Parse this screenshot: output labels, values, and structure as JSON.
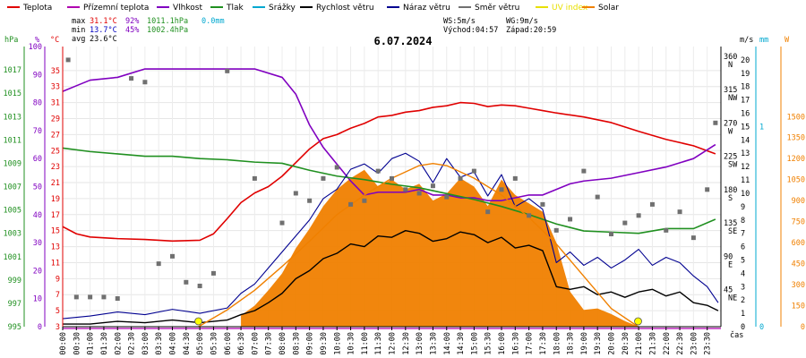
{
  "legend": [
    {
      "label": "Teplota",
      "color": "#e00000"
    },
    {
      "label": "Přízemní teplota",
      "color": "#b000b0"
    },
    {
      "label": "Vlhkost",
      "color": "#8000c0"
    },
    {
      "label": "Tlak",
      "color": "#209020"
    },
    {
      "label": "Srážky",
      "color": "#00a8d0"
    },
    {
      "label": "Rychlost větru",
      "color": "#000000"
    },
    {
      "label": "Náraz větru",
      "color": "#000090"
    },
    {
      "label": "Směr větru",
      "color": "#707070"
    },
    {
      "label": "UV index",
      "color": "#e8e000"
    },
    {
      "label": "Solar",
      "color": "#f08000"
    }
  ],
  "stats": {
    "max_label": "max",
    "max_temp": "31.1°C",
    "max_hum": "92%",
    "max_press": "1011.1hPa",
    "max_rain": "0.0mm",
    "min_label": "min",
    "min_temp": "13.7°C",
    "min_hum": "45%",
    "min_press": "1002.4hPa",
    "avg_label": "avg",
    "avg_temp": "23.6°C",
    "ws": "WS:5m/s",
    "wg": "WG:9m/s",
    "sunrise": "Východ:04:57",
    "sunset": "Západ:20:59"
  },
  "axes_titles": {
    "hpa": "hPa",
    "pct": "%",
    "degc": "°C",
    "ms": "m/s",
    "mm": "mm",
    "w": "W",
    "cas": "čas"
  },
  "chart_data": {
    "type": "line",
    "title": "6.07.2024",
    "x_ticks": [
      "00:00",
      "00:30",
      "01:00",
      "01:30",
      "02:00",
      "02:30",
      "03:00",
      "03:30",
      "04:00",
      "04:30",
      "05:00",
      "05:30",
      "06:00",
      "06:30",
      "07:00",
      "07:30",
      "08:00",
      "08:30",
      "09:00",
      "09:30",
      "10:00",
      "10:30",
      "11:00",
      "11:30",
      "12:00",
      "12:30",
      "13:00",
      "13:30",
      "14:00",
      "14:30",
      "15:00",
      "15:30",
      "16:00",
      "16:30",
      "17:00",
      "17:30",
      "18:00",
      "18:30",
      "19:00",
      "19:30",
      "20:00",
      "20:30",
      "21:00",
      "21:30",
      "22:00",
      "22:30",
      "23:00",
      "23:30"
    ],
    "axis_hpa": {
      "ticks": [
        "995",
        "997",
        "999",
        "1001",
        "1003",
        "1005",
        "1007",
        "1009",
        "1011",
        "1013",
        "1015",
        "1017"
      ],
      "range": [
        995,
        1019
      ],
      "color": "#209020"
    },
    "axis_pct": {
      "ticks": [
        "0",
        "10",
        "20",
        "30",
        "40",
        "50",
        "60",
        "70",
        "80",
        "90",
        "100"
      ],
      "range": [
        0,
        100
      ],
      "color": "#8000c0"
    },
    "axis_degc": {
      "ticks": [
        "3",
        "5",
        "7",
        "9",
        "11",
        "13",
        "15",
        "17",
        "19",
        "21",
        "23",
        "25",
        "27",
        "29",
        "31",
        "33",
        "35"
      ],
      "range": [
        3,
        38
      ],
      "color": "#e00000"
    },
    "axis_ms": {
      "ticks": [
        "0",
        "1",
        "2",
        "3",
        "4",
        "5",
        "6",
        "7",
        "8",
        "9",
        "10",
        "11",
        "12",
        "13",
        "14",
        "15",
        "16",
        "17",
        "18",
        "19",
        "20"
      ],
      "range": [
        0,
        21
      ],
      "color": "#000000"
    },
    "axis_dir": {
      "labels": [
        {
          "v": 45,
          "t": "45",
          "s": "NE"
        },
        {
          "v": 90,
          "t": "90",
          "s": "E"
        },
        {
          "v": 135,
          "t": "135",
          "s": "SE"
        },
        {
          "v": 180,
          "t": "180",
          "s": "S"
        },
        {
          "v": 225,
          "t": "225",
          "s": "SW"
        },
        {
          "v": 270,
          "t": "270",
          "s": "W"
        },
        {
          "v": 315,
          "t": "315",
          "s": "NW"
        },
        {
          "v": 360,
          "t": "360",
          "s": "N"
        }
      ],
      "range": [
        0,
        378
      ]
    },
    "axis_mm": {
      "ticks": [
        "0",
        "1"
      ],
      "range": [
        0,
        1.4
      ],
      "color": "#00a8d0"
    },
    "axis_w": {
      "ticks": [
        "0",
        "150",
        "300",
        "450",
        "600",
        "750",
        "900",
        "1050",
        "1200",
        "1350",
        "1500"
      ],
      "range": [
        0,
        2000
      ],
      "color": "#f08000"
    },
    "series": [
      {
        "name": "Teplota",
        "axis": "degc",
        "hours": [
          0,
          0.5,
          1,
          2,
          3,
          4,
          5,
          5.5,
          6,
          6.5,
          7,
          7.5,
          8,
          8.5,
          9,
          9.5,
          10,
          10.5,
          11,
          11.5,
          12,
          12.5,
          13,
          13.5,
          14,
          14.5,
          15,
          15.5,
          16,
          16.5,
          17,
          17.5,
          18,
          19,
          20,
          21,
          22,
          23,
          23.8
        ],
        "values": [
          15.5,
          14.6,
          14.2,
          14.0,
          13.9,
          13.7,
          13.8,
          14.6,
          16.5,
          18.5,
          19.7,
          20.5,
          21.8,
          23.5,
          25.2,
          26.5,
          27.0,
          27.8,
          28.4,
          29.2,
          29.4,
          29.8,
          30.0,
          30.4,
          30.6,
          31.0,
          30.9,
          30.5,
          30.7,
          30.6,
          30.3,
          30.0,
          29.7,
          29.2,
          28.5,
          27.4,
          26.4,
          25.6,
          24.6
        ]
      },
      {
        "name": "Vlhkost",
        "axis": "pct",
        "hours": [
          0,
          0.5,
          1,
          2,
          3,
          4,
          5,
          6,
          7,
          8,
          8.5,
          9,
          9.5,
          10,
          10.5,
          11,
          11.5,
          12,
          12.5,
          13,
          13.5,
          14,
          14.5,
          15,
          15.5,
          16,
          16.5,
          17,
          17.5,
          18,
          18.5,
          19,
          20,
          21,
          22,
          23,
          23.8
        ],
        "values": [
          84,
          86,
          88,
          89,
          92,
          92,
          92,
          92,
          92,
          89,
          83,
          72,
          64,
          58,
          52,
          47,
          48,
          48,
          48,
          49,
          47,
          47,
          46,
          46,
          45,
          45,
          46,
          47,
          47,
          49,
          51,
          52,
          53,
          55,
          57,
          60,
          65
        ]
      },
      {
        "name": "Tlak",
        "axis": "hpa",
        "hours": [
          0,
          1,
          2,
          3,
          4,
          5,
          6,
          7,
          8,
          9,
          10,
          11,
          12,
          13,
          14,
          15,
          16,
          17,
          18,
          19,
          20,
          21,
          22,
          23,
          23.8
        ],
        "values": [
          1010.3,
          1010.0,
          1009.8,
          1009.6,
          1009.6,
          1009.4,
          1009.3,
          1009.1,
          1009.0,
          1008.4,
          1007.9,
          1007.6,
          1007.2,
          1006.9,
          1006.4,
          1005.9,
          1005.3,
          1004.6,
          1003.8,
          1003.2,
          1003.1,
          1003.0,
          1003.4,
          1003.4,
          1004.2
        ]
      },
      {
        "name": "Rychlost větru",
        "axis": "ms",
        "hours": [
          0,
          1,
          2,
          3,
          4,
          5,
          6,
          6.5,
          7,
          7.5,
          8,
          8.5,
          9,
          9.5,
          10,
          10.5,
          11,
          11.5,
          12,
          12.5,
          13,
          13.5,
          14,
          14.5,
          15,
          15.5,
          16,
          16.5,
          17,
          17.5,
          18,
          18.5,
          19,
          19.5,
          20,
          20.5,
          21,
          21.5,
          22,
          22.5,
          23,
          23.5,
          23.9
        ],
        "values": [
          0.2,
          0.2,
          0.4,
          0.3,
          0.5,
          0.3,
          0.5,
          0.9,
          1.2,
          1.8,
          2.5,
          3.6,
          4.2,
          5.1,
          5.5,
          6.2,
          6.0,
          6.8,
          6.7,
          7.2,
          7.0,
          6.4,
          6.6,
          7.1,
          6.9,
          6.3,
          6.7,
          5.9,
          6.1,
          5.7,
          3.0,
          2.8,
          3.0,
          2.4,
          2.6,
          2.2,
          2.6,
          2.8,
          2.3,
          2.6,
          1.8,
          1.6,
          1.2
        ]
      },
      {
        "name": "Náraz větru",
        "axis": "ms",
        "hours": [
          0,
          1,
          2,
          3,
          4,
          5,
          6,
          6.5,
          7,
          7.5,
          8,
          8.5,
          9,
          9.5,
          10,
          10.5,
          11,
          11.5,
          12,
          12.5,
          13,
          13.5,
          14,
          14.5,
          15,
          15.5,
          16,
          16.5,
          17,
          17.5,
          18,
          18.5,
          19,
          19.5,
          20,
          20.5,
          21,
          21.5,
          22,
          22.5,
          23,
          23.5,
          23.9
        ],
        "values": [
          0.6,
          0.8,
          1.1,
          0.9,
          1.3,
          1.0,
          1.4,
          2.5,
          3.2,
          4.4,
          5.6,
          6.8,
          8.0,
          9.6,
          10.3,
          11.8,
          12.2,
          11.5,
          12.6,
          13.0,
          12.4,
          10.8,
          12.6,
          11.2,
          11.6,
          9.8,
          11.4,
          9.0,
          9.6,
          8.8,
          4.8,
          5.6,
          4.6,
          5.2,
          4.4,
          5.0,
          5.8,
          4.6,
          5.2,
          4.8,
          3.8,
          3.0,
          1.8
        ]
      },
      {
        "name": "Solar",
        "axis": "w",
        "hours": [
          4.95,
          6,
          7,
          8,
          9,
          10,
          11,
          12,
          13,
          13.5,
          14,
          15,
          16,
          17,
          18,
          19,
          20,
          20.98
        ],
        "values": [
          0,
          120,
          260,
          430,
          610,
          800,
          940,
          1060,
          1150,
          1165,
          1150,
          1060,
          940,
          780,
          590,
          360,
          130,
          0
        ]
      }
    ],
    "wind_direction": {
      "name": "Směr větru",
      "hours": [
        0.2,
        0.5,
        1,
        1.5,
        2,
        2.5,
        3,
        3.5,
        4,
        4.5,
        5,
        5.5,
        6,
        7,
        8,
        8.5,
        9,
        9.5,
        10,
        10.5,
        11,
        11.5,
        12,
        12.5,
        13,
        13.5,
        14,
        14.5,
        15,
        15.5,
        16,
        16.5,
        17,
        17.5,
        18,
        18.5,
        19,
        19.5,
        20,
        20.5,
        21,
        21.5,
        22,
        22.5,
        23,
        23.5,
        23.8
      ],
      "values": [
        360,
        40,
        40,
        40,
        38,
        335,
        330,
        85,
        95,
        60,
        55,
        72,
        345,
        200,
        140,
        180,
        170,
        200,
        215,
        165,
        170,
        210,
        200,
        185,
        180,
        190,
        175,
        200,
        210,
        155,
        185,
        200,
        150,
        165,
        130,
        145,
        210,
        175,
        125,
        140,
        150,
        165,
        130,
        155,
        120,
        185,
        275
      ]
    },
    "solar_measured": {
      "name": "Solar",
      "hours": [
        6.5,
        7,
        7.5,
        8,
        8.5,
        9,
        9.5,
        10,
        10.5,
        11,
        11.5,
        12,
        12.5,
        13,
        13.5,
        14,
        14.5,
        15,
        15.5,
        16,
        16.5,
        17,
        17.5,
        18,
        18.5,
        19,
        19.5,
        20,
        20.5,
        21
      ],
      "values": [
        80,
        150,
        260,
        380,
        560,
        700,
        860,
        980,
        1060,
        1120,
        1000,
        1050,
        980,
        1020,
        900,
        950,
        1060,
        1000,
        860,
        1050,
        940,
        880,
        820,
        600,
        250,
        120,
        130,
        90,
        40,
        0
      ]
    }
  }
}
